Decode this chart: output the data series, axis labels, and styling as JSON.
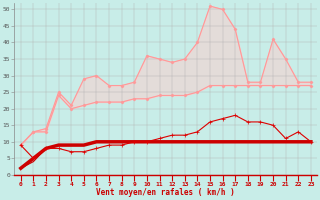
{
  "x": [
    0,
    1,
    2,
    3,
    4,
    5,
    6,
    7,
    8,
    9,
    10,
    11,
    12,
    13,
    14,
    15,
    16,
    17,
    18,
    19,
    20,
    21,
    22,
    23
  ],
  "background_color": "#c8ede8",
  "grid_color": "#b0b0b0",
  "xlabel": "Vent moyen/en rafales ( km/h )",
  "ylim": [
    0,
    52
  ],
  "xlim": [
    -0.5,
    23.5
  ],
  "yticks": [
    0,
    5,
    10,
    15,
    20,
    25,
    30,
    35,
    40,
    45,
    50
  ],
  "series": [
    {
      "name": "light_pink_upper",
      "values": [
        9,
        13,
        14,
        25,
        21,
        29,
        30,
        27,
        27,
        28,
        36,
        35,
        34,
        35,
        40,
        51,
        50,
        44,
        28,
        28,
        41,
        35,
        28,
        28
      ],
      "color": "#ff9999",
      "marker": "D",
      "markersize": 1.5,
      "linewidth": 0.8,
      "zorder": 2
    },
    {
      "name": "light_pink_lower_with_markers",
      "values": [
        9,
        13,
        13,
        24,
        20,
        21,
        22,
        22,
        22,
        23,
        23,
        24,
        24,
        24,
        25,
        27,
        27,
        27,
        27,
        27,
        27,
        27,
        27,
        27
      ],
      "color": "#ff9999",
      "marker": "D",
      "markersize": 1.5,
      "linewidth": 0.8,
      "zorder": 2
    },
    {
      "name": "very_light_pink_fill_top",
      "values": [
        9,
        13,
        14,
        25,
        21,
        29,
        30,
        27,
        27,
        28,
        36,
        35,
        34,
        35,
        40,
        51,
        50,
        44,
        28,
        28,
        41,
        35,
        28,
        28
      ],
      "color": "#ffbbbb",
      "marker": null,
      "markersize": 0,
      "linewidth": 0.5,
      "zorder": 1
    },
    {
      "name": "very_light_pink_fill_bottom",
      "values": [
        9,
        13,
        13,
        24,
        20,
        21,
        22,
        22,
        22,
        23,
        23,
        24,
        24,
        24,
        25,
        27,
        27,
        27,
        27,
        27,
        27,
        27,
        27,
        27
      ],
      "color": "#ffbbbb",
      "marker": null,
      "markersize": 0,
      "linewidth": 0.5,
      "zorder": 1
    },
    {
      "name": "dark_red_with_markers",
      "values": [
        9,
        5,
        8,
        8,
        7,
        7,
        8,
        9,
        9,
        10,
        10,
        11,
        12,
        12,
        13,
        16,
        17,
        18,
        16,
        16,
        15,
        11,
        13,
        10
      ],
      "color": "#dd0000",
      "marker": "+",
      "markersize": 2.5,
      "linewidth": 0.8,
      "zorder": 5
    },
    {
      "name": "dark_red_thick",
      "values": [
        2,
        5,
        8,
        9,
        9,
        9,
        10,
        10,
        10,
        10,
        10,
        10,
        10,
        10,
        10,
        10,
        10,
        10,
        10,
        10,
        10,
        10,
        10,
        10
      ],
      "color": "#cc0000",
      "marker": null,
      "markersize": 0,
      "linewidth": 2.5,
      "zorder": 4
    },
    {
      "name": "dark_red_thin",
      "values": [
        2,
        4,
        8,
        9,
        9,
        9,
        10,
        10,
        10,
        10,
        10,
        10,
        10,
        10,
        10,
        10,
        10,
        10,
        10,
        10,
        10,
        10,
        10,
        10
      ],
      "color": "#cc0000",
      "marker": null,
      "markersize": 0,
      "linewidth": 0.8,
      "zorder": 3
    }
  ],
  "arrow_color": "#cc0000",
  "xlabel_fontsize": 5.5,
  "tick_fontsize": 4.5
}
